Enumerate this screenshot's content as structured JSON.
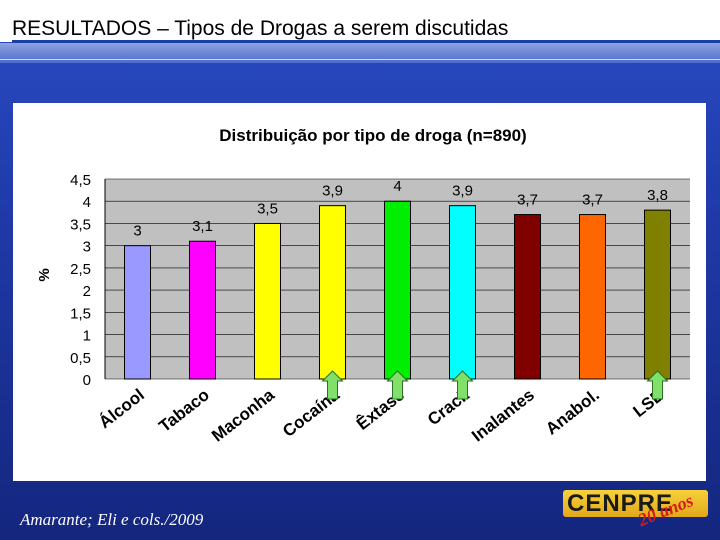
{
  "slide": {
    "title": "RESULTADOS – Tipos de Drogas a serem discutidas",
    "citation": "Amarante; Eli e cols./2009",
    "logo_text": "CENPRE",
    "logo_sub": "20 anos"
  },
  "colors": {
    "background": "#1f3aa8",
    "plot_area": "#c0c0c0",
    "arrow": "#7fe06a"
  },
  "chart_data": {
    "type": "bar",
    "title": "Distribuição por tipo de droga (n=890)",
    "xlabel": "",
    "ylabel": "%",
    "ylim": [
      0,
      4.5
    ],
    "yticks": [
      0,
      0.5,
      1,
      1.5,
      2,
      2.5,
      3,
      3.5,
      4,
      4.5
    ],
    "ytick_labels": [
      "0",
      "0,5",
      "1",
      "1,5",
      "2",
      "2,5",
      "3",
      "3,5",
      "4",
      "4,5"
    ],
    "grid": true,
    "categories": [
      "Álcool",
      "Tabaco",
      "Maconha",
      "Cocaína",
      "Êxtase",
      "Crack",
      "Inalantes",
      "Anabol.",
      "LSD"
    ],
    "values": [
      3,
      3.1,
      3.5,
      3.9,
      4,
      3.9,
      3.7,
      3.7,
      3.8
    ],
    "value_labels": [
      "3",
      "3,1",
      "3,5",
      "3,9",
      "4",
      "3,9",
      "3,7",
      "3,7",
      "3,8"
    ],
    "bar_colors": [
      "#9999ff",
      "#ff00ff",
      "#ffff00",
      "#ffff00",
      "#00ee00",
      "#00ffff",
      "#800000",
      "#ff6600",
      "#808000"
    ],
    "highlighted": [
      "Cocaína",
      "Êxtase",
      "Crack",
      "LSD"
    ]
  }
}
